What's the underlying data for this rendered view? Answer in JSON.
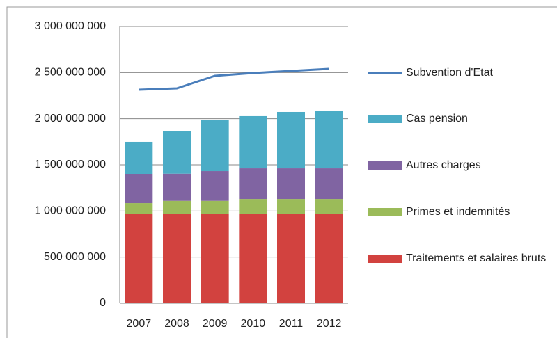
{
  "chart_data": {
    "type": "bar",
    "stacked": true,
    "categories": [
      "2007",
      "2008",
      "2009",
      "2010",
      "2011",
      "2012"
    ],
    "series": [
      {
        "name": "Traitements et salaires bruts",
        "color": "#d2423f",
        "values": [
          965000000,
          970000000,
          970000000,
          970000000,
          970000000,
          970000000
        ]
      },
      {
        "name": "Primes et indemnités",
        "color": "#9bbb59",
        "values": [
          120000000,
          140000000,
          140000000,
          160000000,
          160000000,
          160000000
        ]
      },
      {
        "name": "Autres charges",
        "color": "#8064a2",
        "values": [
          317000000,
          294000000,
          322000000,
          332000000,
          332000000,
          332000000
        ]
      },
      {
        "name": "Cas pension",
        "color": "#4bacc6",
        "values": [
          347000000,
          460000000,
          558000000,
          566000000,
          611000000,
          626000000
        ]
      },
      {
        "name": "Subvention d'Etat",
        "color": "#4a7ebb",
        "type": "line",
        "values": [
          2314000000,
          2329000000,
          2465000000,
          2495000000,
          2518000000,
          2540000000
        ]
      }
    ],
    "ylim": [
      0,
      3000000000
    ],
    "yticks": [
      {
        "value": 0,
        "label": "0"
      },
      {
        "value": 500000000,
        "label": "500 000 000"
      },
      {
        "value": 1000000000,
        "label": "1 000 000 000"
      },
      {
        "value": 1500000000,
        "label": "1 500 000 000"
      },
      {
        "value": 2000000000,
        "label": "2 000 000 000"
      },
      {
        "value": 2500000000,
        "label": "2 500 000 000"
      },
      {
        "value": 3000000000,
        "label": "3 000 000 000"
      }
    ],
    "grid": true,
    "legend": "right"
  }
}
